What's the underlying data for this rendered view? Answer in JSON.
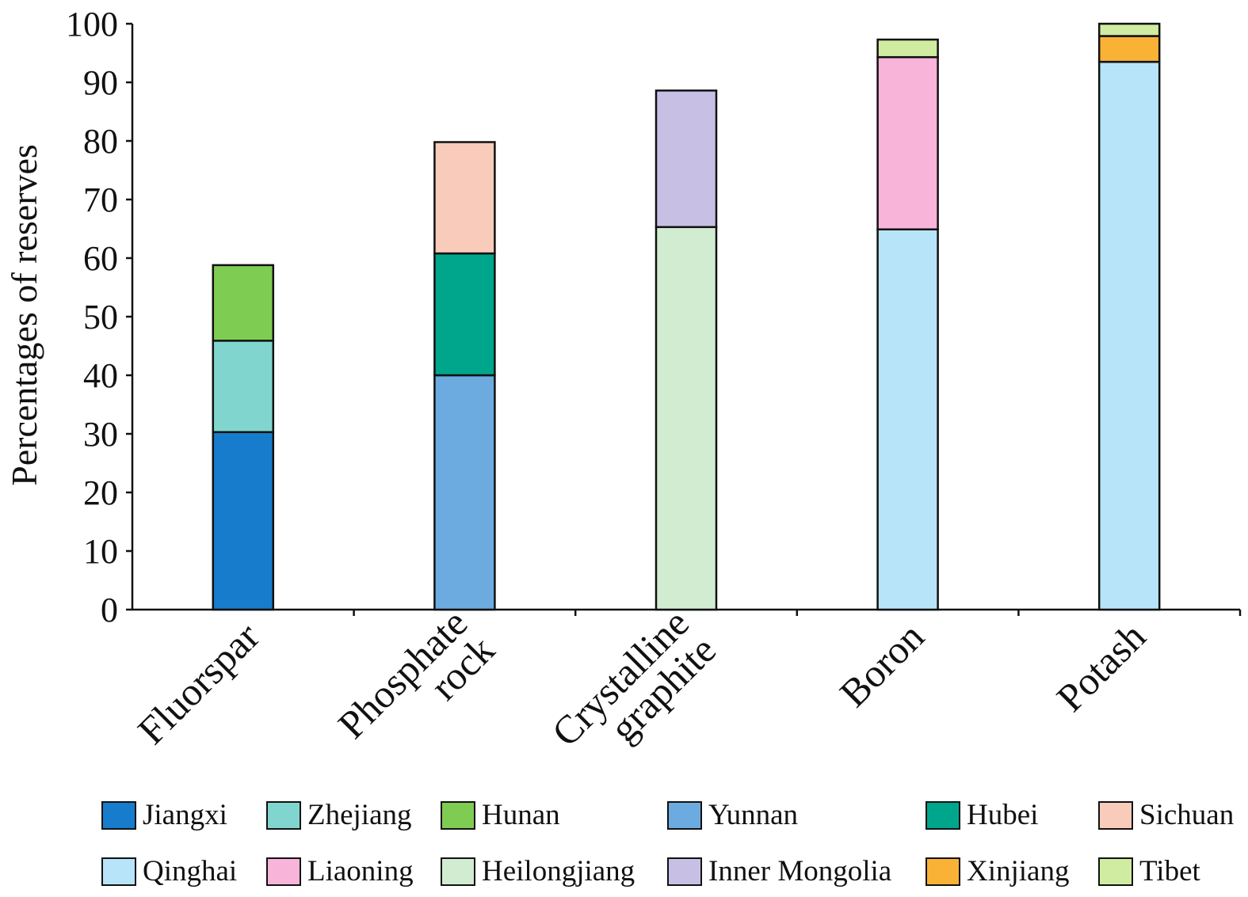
{
  "chart_data": {
    "type": "bar",
    "stacked": true,
    "ylabel": "Percentages of reserves",
    "ylim": [
      0,
      100
    ],
    "yticks": [
      0,
      10,
      20,
      30,
      40,
      50,
      60,
      70,
      80,
      90,
      100
    ],
    "categories": [
      [
        "Fluorspar"
      ],
      [
        "Phosphate",
        "rock"
      ],
      [
        "Crystalline",
        "graphite"
      ],
      [
        "Boron"
      ],
      [
        "Potash"
      ]
    ],
    "series": [
      {
        "name": "Jiangxi",
        "color": "#177ccc",
        "values": [
          30.3,
          0,
          0,
          0,
          0
        ]
      },
      {
        "name": "Zhejiang",
        "color": "#80d6cf",
        "values": [
          15.6,
          0,
          0,
          0,
          0
        ]
      },
      {
        "name": "Hunan",
        "color": "#7fcc52",
        "values": [
          12.9,
          0,
          0,
          0,
          0
        ]
      },
      {
        "name": "Yunnan",
        "color": "#6cabe0",
        "values": [
          0,
          40.0,
          0,
          0,
          0
        ]
      },
      {
        "name": "Hubei",
        "color": "#00a68c",
        "values": [
          0,
          20.8,
          0,
          0,
          0
        ]
      },
      {
        "name": "Sichuan",
        "color": "#f8cbbb",
        "values": [
          0,
          19.0,
          0,
          0,
          0
        ]
      },
      {
        "name": "Qinghai",
        "color": "#b7e4f8",
        "values": [
          0,
          0,
          0,
          64.9,
          93.5
        ]
      },
      {
        "name": "Liaoning",
        "color": "#f9b4d9",
        "values": [
          0,
          0,
          0,
          29.4,
          0
        ]
      },
      {
        "name": "Heilongjiang",
        "color": "#d1ecd1",
        "values": [
          0,
          0,
          65.3,
          0,
          0
        ]
      },
      {
        "name": "Inner Mongolia",
        "color": "#c8bfe5",
        "values": [
          0,
          0,
          23.3,
          0,
          0
        ]
      },
      {
        "name": "Xinjiang",
        "color": "#f9b235",
        "values": [
          0,
          0,
          0,
          0,
          4.4
        ]
      },
      {
        "name": "Tibet",
        "color": "#cfeca0",
        "values": [
          0,
          0,
          0,
          3.0,
          2.1
        ]
      }
    ]
  }
}
